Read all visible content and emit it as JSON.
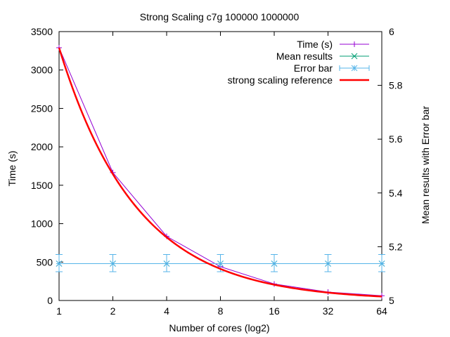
{
  "chart_data": {
    "type": "line",
    "title": "Strong Scaling c7g 100000 1000000",
    "xlabel": "Number of cores (log2)",
    "ylabel": "Time (s)",
    "y2label": "Mean results with Error bar",
    "x_scale": "log2",
    "x_ticks": [
      "1",
      "2",
      "4",
      "8",
      "16",
      "32",
      "64"
    ],
    "x": [
      1,
      2,
      4,
      8,
      16,
      32,
      64
    ],
    "ylim": [
      0,
      3500
    ],
    "y_ticks": [
      "0",
      "500",
      "1000",
      "1500",
      "2000",
      "2500",
      "3000",
      "3500"
    ],
    "y2lim": [
      5.0,
      6.0
    ],
    "y2_ticks": [
      "5",
      "5.2",
      "5.4",
      "5.6",
      "5.8",
      "6"
    ],
    "grid": false,
    "legend_position": "top-right",
    "series": [
      {
        "name": "Time (s)",
        "axis": "y",
        "color": "#9400d3",
        "marker": "plus",
        "values": [
          3290,
          1665,
          835,
          440,
          215,
          110,
          62
        ]
      },
      {
        "name": "Mean results",
        "axis": "y2",
        "color": "#009e73",
        "marker": "cross",
        "values": [
          5.137,
          5.137,
          5.137,
          5.137,
          5.137,
          5.137,
          5.137
        ]
      },
      {
        "name": "Error bar",
        "axis": "y2",
        "color": "#56b4e9",
        "marker": "star",
        "values": [
          5.137,
          5.137,
          5.137,
          5.137,
          5.137,
          5.137,
          5.137
        ],
        "error_low": [
          5.107,
          5.107,
          5.107,
          5.107,
          5.107,
          5.107,
          5.107
        ],
        "error_high": [
          5.171,
          5.171,
          5.171,
          5.171,
          5.171,
          5.171,
          5.171
        ]
      },
      {
        "name": "strong scaling reference",
        "axis": "y",
        "color": "#ff0000",
        "marker": "none",
        "curve": "reference",
        "start_value": 3290
      }
    ]
  }
}
